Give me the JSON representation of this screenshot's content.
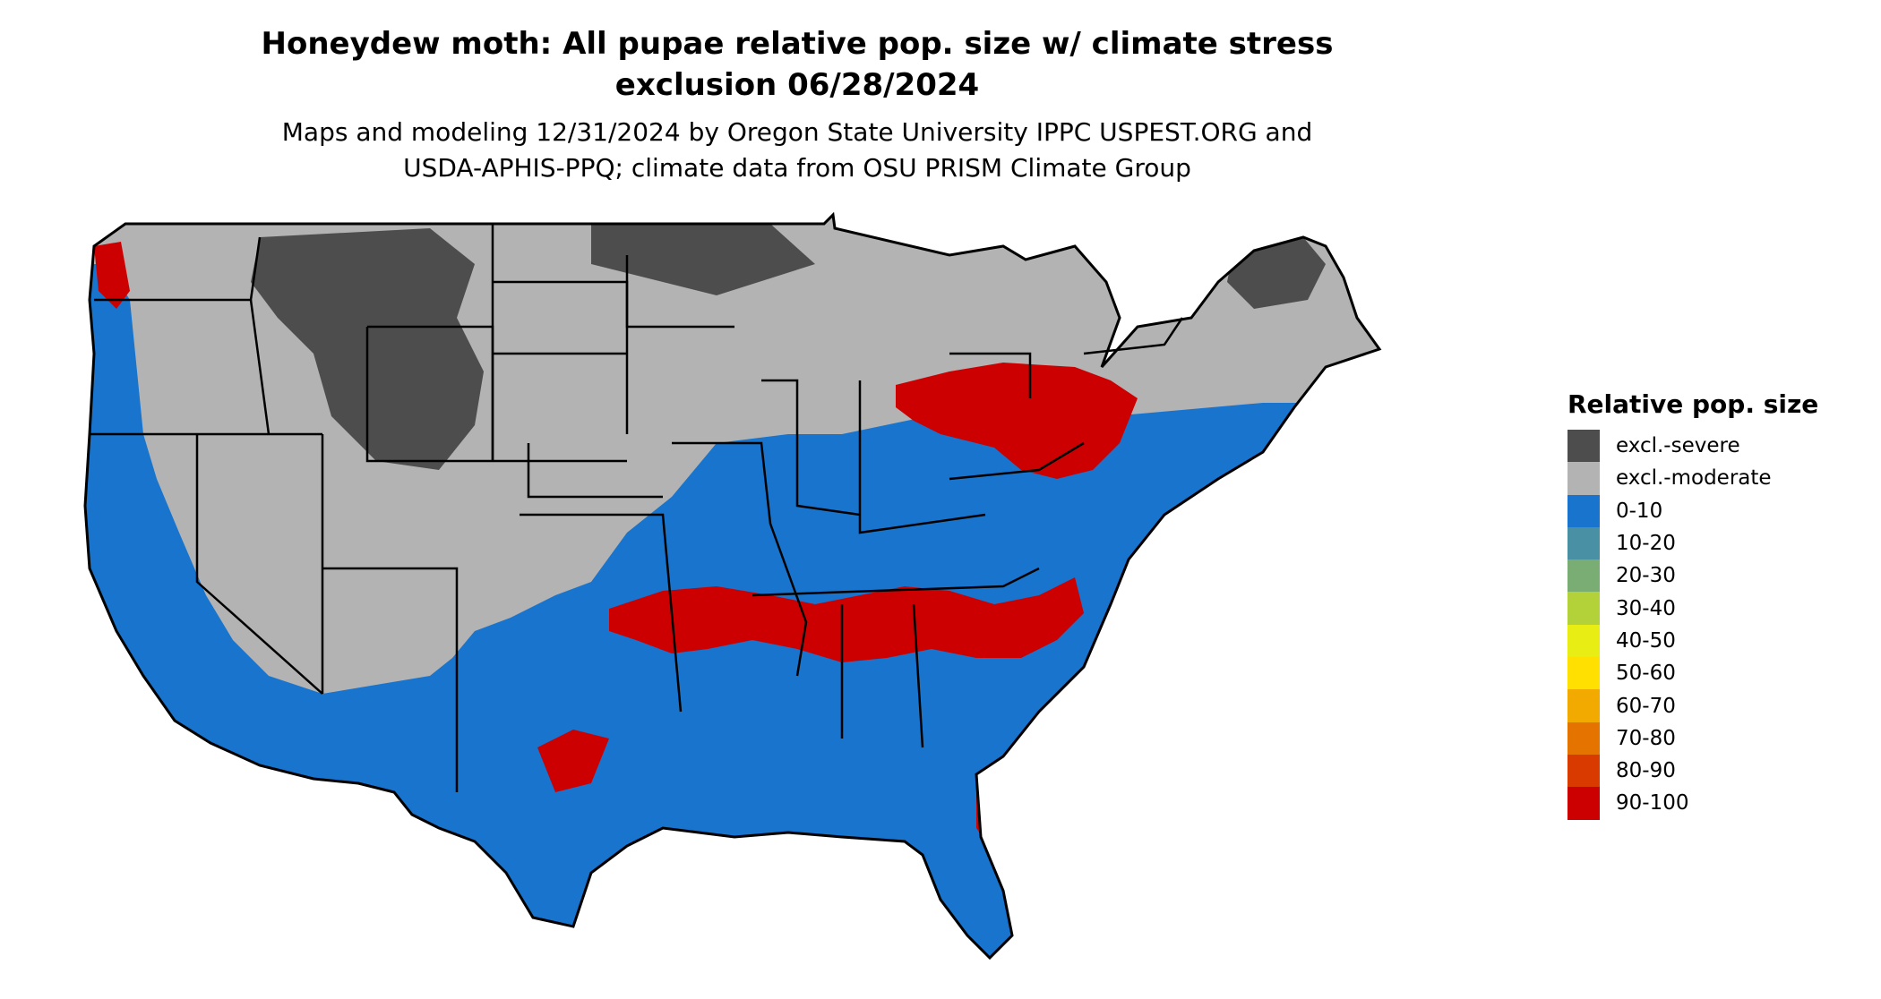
{
  "title_line1": "Honeydew moth: All pupae relative pop. size w/ climate stress",
  "title_line2": "exclusion 06/28/2024",
  "subtitle_line1": "Maps and modeling 12/31/2024 by Oregon State University IPPC USPEST.ORG and",
  "subtitle_line2": "USDA-APHIS-PPQ; climate data from OSU PRISM Climate Group",
  "legend": {
    "title": "Relative pop. size",
    "items": [
      {
        "label": "excl.-severe",
        "color": "#4d4d4d"
      },
      {
        "label": "excl.-moderate",
        "color": "#b3b3b3"
      },
      {
        "label": "0-10",
        "color": "#1874cd"
      },
      {
        "label": "10-20",
        "color": "#4a90a4"
      },
      {
        "label": "20-30",
        "color": "#7aad74"
      },
      {
        "label": "30-40",
        "color": "#b3d23a"
      },
      {
        "label": "40-50",
        "color": "#e8ee13"
      },
      {
        "label": "50-60",
        "color": "#ffe000"
      },
      {
        "label": "60-70",
        "color": "#f2a900"
      },
      {
        "label": "70-80",
        "color": "#e57300"
      },
      {
        "label": "80-90",
        "color": "#d93a00"
      },
      {
        "label": "90-100",
        "color": "#cc0000"
      }
    ]
  }
}
